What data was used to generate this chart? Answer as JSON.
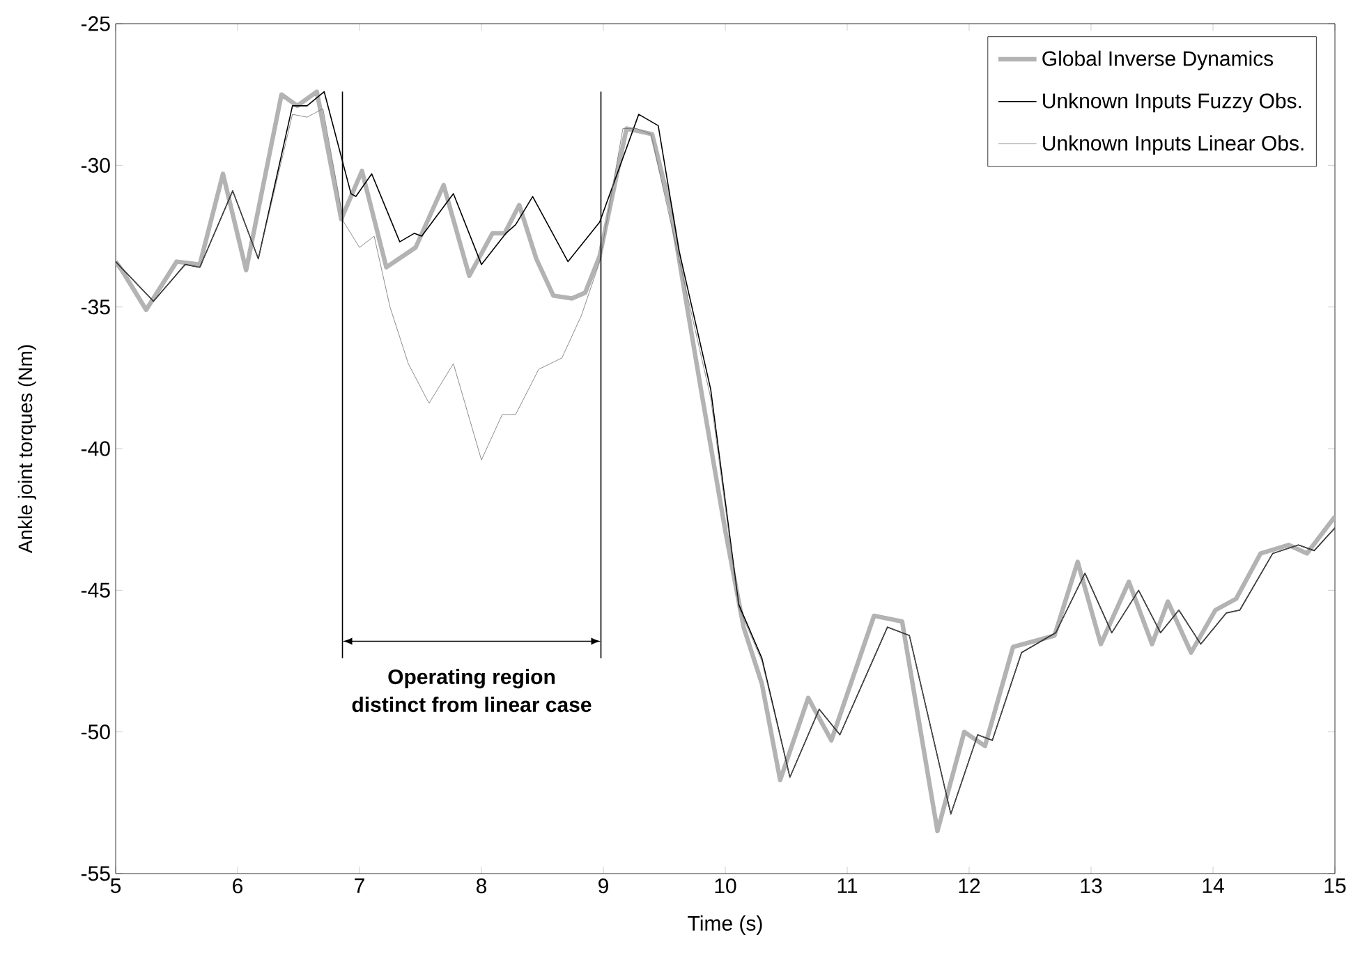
{
  "chart_data": {
    "type": "line",
    "xlabel": "Time (s)",
    "ylabel": "Ankle joint torques (Nm)",
    "xlim": [
      5,
      15
    ],
    "ylim": [
      -55,
      -25
    ],
    "xticks": [
      5,
      6,
      7,
      8,
      9,
      10,
      11,
      12,
      13,
      14,
      15
    ],
    "yticks": [
      -55,
      -50,
      -45,
      -40,
      -35,
      -30,
      -25
    ],
    "legend": "top right",
    "grid": false,
    "marker": "none",
    "series": [
      {
        "name": "Global Inverse Dynamics",
        "color": "#b3b3b3",
        "line_style": "solid",
        "x": [
          5.0,
          5.05,
          5.25,
          5.5,
          5.69,
          5.88,
          6.07,
          6.36,
          6.49,
          6.65,
          6.85,
          7.02,
          7.22,
          7.46,
          7.69,
          7.9,
          8.09,
          8.19,
          8.31,
          8.45,
          8.59,
          8.74,
          8.85,
          8.97,
          9.19,
          9.3,
          9.4,
          9.55,
          9.8,
          10.0,
          10.15,
          10.3,
          10.45,
          10.68,
          10.87,
          11.22,
          11.45,
          11.74,
          11.96,
          12.13,
          12.36,
          12.7,
          12.89,
          13.08,
          13.31,
          13.5,
          13.63,
          13.82,
          14.02,
          14.19,
          14.39,
          14.62,
          14.77,
          15.0
        ],
        "values": [
          -33.4,
          -33.7,
          -35.1,
          -33.4,
          -33.5,
          -30.3,
          -33.7,
          -27.5,
          -27.9,
          -27.4,
          -31.9,
          -30.2,
          -33.6,
          -32.9,
          -30.7,
          -33.9,
          -32.4,
          -32.4,
          -31.4,
          -33.3,
          -34.6,
          -34.7,
          -34.5,
          -33.2,
          -28.7,
          -28.8,
          -28.9,
          -31.5,
          -37.9,
          -42.9,
          -46.3,
          -48.3,
          -51.7,
          -48.8,
          -50.3,
          -45.9,
          -46.1,
          -53.5,
          -50.0,
          -50.5,
          -47.0,
          -46.6,
          -44.0,
          -46.9,
          -44.7,
          -46.9,
          -45.4,
          -47.2,
          -45.7,
          -45.3,
          -43.7,
          -43.4,
          -43.7,
          -42.4
        ]
      },
      {
        "name": "Unknown Inputs Fuzzy Obs.",
        "color": "#000000",
        "line_style": "solid",
        "x": [
          5.0,
          5.31,
          5.57,
          5.69,
          5.96,
          6.17,
          6.45,
          6.57,
          6.71,
          6.93,
          6.97,
          7.1,
          7.33,
          7.45,
          7.51,
          7.77,
          8.0,
          8.2,
          8.28,
          8.42,
          8.71,
          8.97,
          9.29,
          9.45,
          9.62,
          9.88,
          10.11,
          10.3,
          10.53,
          10.77,
          10.94,
          11.33,
          11.51,
          11.85,
          12.07,
          12.19,
          12.43,
          12.71,
          12.95,
          13.17,
          13.39,
          13.57,
          13.72,
          13.9,
          14.11,
          14.22,
          14.49,
          14.7,
          14.83,
          15.0
        ],
        "values": [
          -33.4,
          -34.8,
          -33.5,
          -33.6,
          -30.9,
          -33.3,
          -27.9,
          -27.9,
          -27.4,
          -31.0,
          -31.1,
          -30.3,
          -32.7,
          -32.4,
          -32.5,
          -31.0,
          -33.5,
          -32.4,
          -32.1,
          -31.1,
          -33.4,
          -32.0,
          -28.2,
          -28.6,
          -33.0,
          -37.9,
          -45.5,
          -47.4,
          -51.6,
          -49.2,
          -50.1,
          -46.3,
          -46.6,
          -52.9,
          -50.1,
          -50.3,
          -47.2,
          -46.5,
          -44.4,
          -46.5,
          -45.0,
          -46.5,
          -45.7,
          -46.9,
          -45.8,
          -45.7,
          -43.7,
          -43.4,
          -43.6,
          -42.8
        ]
      },
      {
        "name": "Unknown Inputs Linear Obs.",
        "color": "#707070",
        "line_style": "solid",
        "x": [
          5.0,
          5.31,
          5.57,
          5.69,
          5.96,
          6.17,
          6.45,
          6.57,
          6.7,
          6.87,
          7.0,
          7.12,
          7.25,
          7.4,
          7.57,
          7.77,
          8.0,
          8.17,
          8.28,
          8.47,
          8.66,
          8.82,
          8.97,
          9.16,
          9.27,
          9.39,
          9.62,
          9.88,
          10.11,
          10.3,
          10.53,
          10.77,
          10.94,
          11.33,
          11.51,
          11.85,
          12.07,
          12.19,
          12.43,
          12.71,
          12.95,
          13.17,
          13.39,
          13.57,
          13.72,
          13.9,
          14.11,
          14.22,
          14.49,
          14.7,
          14.83,
          15.0
        ],
        "values": [
          -33.4,
          -34.8,
          -33.5,
          -33.6,
          -30.9,
          -33.3,
          -28.2,
          -28.3,
          -28.0,
          -32.0,
          -32.9,
          -32.5,
          -35.0,
          -37.0,
          -38.4,
          -37.0,
          -40.4,
          -38.8,
          -38.8,
          -37.2,
          -36.8,
          -35.3,
          -33.4,
          -28.7,
          -28.7,
          -28.9,
          -33.3,
          -38.2,
          -45.6,
          -47.5,
          -51.6,
          -49.2,
          -50.1,
          -46.3,
          -46.6,
          -52.9,
          -50.1,
          -50.3,
          -47.2,
          -46.5,
          -44.4,
          -46.5,
          -45.0,
          -46.5,
          -45.7,
          -46.9,
          -45.8,
          -45.7,
          -43.7,
          -43.4,
          -43.6,
          -42.8
        ]
      }
    ],
    "ref_lines": [
      {
        "axis": "x",
        "value": 6.86,
        "color": "#000000"
      },
      {
        "axis": "x",
        "value": 8.98,
        "color": "#000000"
      }
    ],
    "annotations": [
      "Operating region",
      "distinct from linear case"
    ]
  }
}
